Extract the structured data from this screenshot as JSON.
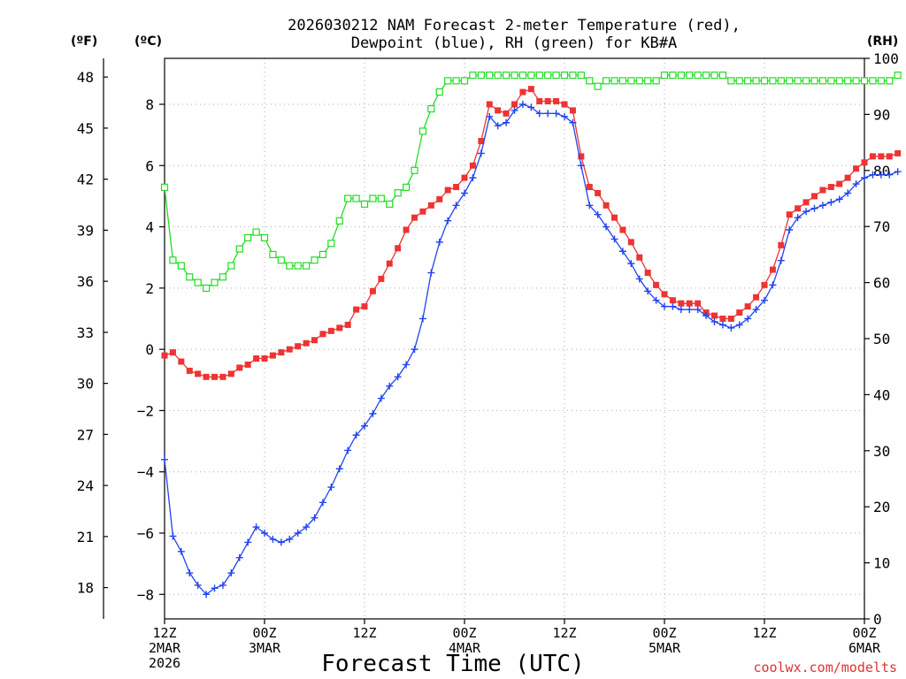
{
  "chart_data": {
    "type": "line",
    "title": [
      "2026030212 NAM Forecast 2-meter Temperature (red),",
      "Dewpoint (blue), RH (green) for KB#A"
    ],
    "xlabel": "Forecast Time (UTC)",
    "credit": "coolwx.com/modelts",
    "axis_headers": {
      "fahrenheit": "(ºF)",
      "celsius": "(ºC)",
      "rh": "(RH)"
    },
    "x_hours_range": [
      0,
      84
    ],
    "x_ticks": [
      {
        "hour": 0,
        "lines": [
          "12Z",
          "2MAR",
          "2026"
        ]
      },
      {
        "hour": 12,
        "lines": [
          "00Z",
          "3MAR"
        ]
      },
      {
        "hour": 24,
        "lines": [
          "12Z"
        ]
      },
      {
        "hour": 36,
        "lines": [
          "00Z",
          "4MAR"
        ]
      },
      {
        "hour": 48,
        "lines": [
          "12Z"
        ]
      },
      {
        "hour": 60,
        "lines": [
          "00Z",
          "5MAR"
        ]
      },
      {
        "hour": 72,
        "lines": [
          "12Z"
        ]
      },
      {
        "hour": 84,
        "lines": [
          "00Z",
          "6MAR"
        ]
      }
    ],
    "celsius_range": [
      -8.8,
      9.5
    ],
    "celsius_ticks": [
      "-8",
      "-6",
      "-4",
      "-2",
      "0",
      "2",
      "4",
      "6",
      "8"
    ],
    "fahrenheit_ticks": [
      "18",
      "21",
      "24",
      "27",
      "30",
      "33",
      "36",
      "39",
      "42",
      "45",
      "48"
    ],
    "rh_range": [
      0,
      100
    ],
    "rh_ticks": [
      "0",
      "10",
      "20",
      "30",
      "40",
      "50",
      "60",
      "70",
      "80",
      "90",
      "100"
    ],
    "series": [
      {
        "name": "Temperature",
        "units": "C",
        "color": "#ee3333",
        "marker": "filled-square",
        "values": [
          -0.2,
          -0.1,
          -0.4,
          -0.7,
          -0.8,
          -0.9,
          -0.9,
          -0.9,
          -0.8,
          -0.6,
          -0.5,
          -0.3,
          -0.3,
          -0.2,
          -0.1,
          0.0,
          0.1,
          0.2,
          0.3,
          0.5,
          0.6,
          0.7,
          0.8,
          1.3,
          1.4,
          1.9,
          2.3,
          2.8,
          3.3,
          3.9,
          4.3,
          4.5,
          4.7,
          4.9,
          5.2,
          5.3,
          5.6,
          6.0,
          6.8,
          8.0,
          7.8,
          7.7,
          8.0,
          8.4,
          8.5,
          8.1,
          8.1,
          8.1,
          8.0,
          7.8,
          6.3,
          5.3,
          5.1,
          4.7,
          4.3,
          3.9,
          3.5,
          3.0,
          2.5,
          2.1,
          1.8,
          1.6,
          1.5,
          1.5,
          1.5,
          1.2,
          1.1,
          1.0,
          1.0,
          1.2,
          1.4,
          1.7,
          2.1,
          2.6,
          3.4,
          4.4,
          4.6,
          4.8,
          5.0,
          5.2,
          5.3,
          5.4,
          5.6,
          5.9,
          6.1,
          6.3,
          6.3,
          6.3,
          6.4
        ]
      },
      {
        "name": "Dewpoint",
        "units": "C",
        "color": "#2244ee",
        "marker": "plus",
        "values": [
          -3.6,
          -6.1,
          -6.6,
          -7.3,
          -7.7,
          -8.0,
          -7.8,
          -7.7,
          -7.3,
          -6.8,
          -6.3,
          -5.8,
          -6.0,
          -6.2,
          -6.3,
          -6.2,
          -6.0,
          -5.8,
          -5.5,
          -5.0,
          -4.5,
          -3.9,
          -3.3,
          -2.8,
          -2.5,
          -2.1,
          -1.6,
          -1.2,
          -0.9,
          -0.5,
          0.0,
          1.0,
          2.5,
          3.5,
          4.2,
          4.7,
          5.1,
          5.6,
          6.4,
          7.6,
          7.3,
          7.4,
          7.8,
          8.0,
          7.9,
          7.7,
          7.7,
          7.7,
          7.6,
          7.4,
          6.0,
          4.7,
          4.4,
          4.0,
          3.6,
          3.2,
          2.8,
          2.3,
          1.9,
          1.6,
          1.4,
          1.4,
          1.3,
          1.3,
          1.3,
          1.1,
          0.9,
          0.8,
          0.7,
          0.8,
          1.0,
          1.3,
          1.6,
          2.1,
          2.9,
          3.9,
          4.3,
          4.5,
          4.6,
          4.7,
          4.8,
          4.9,
          5.1,
          5.4,
          5.6,
          5.7,
          5.7,
          5.7,
          5.8
        ]
      },
      {
        "name": "RH",
        "units": "%",
        "color": "#22dd22",
        "marker": "open-square",
        "values": [
          77,
          64,
          63,
          61,
          60,
          59,
          60,
          61,
          63,
          66,
          68,
          69,
          68,
          65,
          64,
          63,
          63,
          63,
          64,
          65,
          67,
          71,
          75,
          75,
          74,
          75,
          75,
          74,
          76,
          77,
          80,
          87,
          91,
          94,
          96,
          96,
          96,
          97,
          97,
          97,
          97,
          97,
          97,
          97,
          97,
          97,
          97,
          97,
          97,
          97,
          97,
          96,
          95,
          96,
          96,
          96,
          96,
          96,
          96,
          96,
          97,
          97,
          97,
          97,
          97,
          97,
          97,
          97,
          96,
          96,
          96,
          96,
          96,
          96,
          96,
          96,
          96,
          96,
          96,
          96,
          96,
          96,
          96,
          96,
          96,
          96,
          96,
          96,
          97
        ]
      }
    ]
  }
}
